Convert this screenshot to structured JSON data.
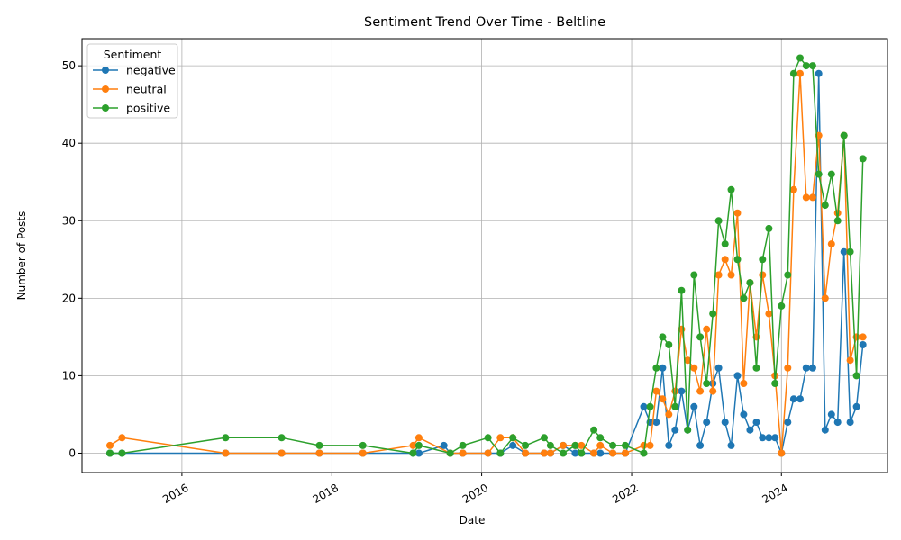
{
  "chart_data": {
    "type": "line",
    "title": "Sentiment Trend Over Time - Beltline",
    "xlabel": "Date",
    "ylabel": "Number of Posts",
    "xlim": [
      "2014-09-01",
      "2025-06-01"
    ],
    "ylim": [
      -2.5,
      53.5
    ],
    "x_ticks": [
      "2016-01-01",
      "2018-01-01",
      "2020-01-01",
      "2022-01-01",
      "2024-01-01"
    ],
    "x_tick_labels": [
      "2016",
      "2018",
      "2020",
      "2022",
      "2024"
    ],
    "y_ticks": [
      0,
      10,
      20,
      30,
      40,
      50
    ],
    "grid": true,
    "legend": {
      "title": "Sentiment",
      "position": "top-left"
    },
    "series": [
      {
        "name": "negative",
        "color": "#1f77b4",
        "points": [
          [
            "2015-01-15",
            0
          ],
          [
            "2015-03-15",
            0
          ],
          [
            "2016-08-01",
            0
          ],
          [
            "2017-05-01",
            0
          ],
          [
            "2017-11-01",
            0
          ],
          [
            "2018-06-01",
            0
          ],
          [
            "2019-02-01",
            0
          ],
          [
            "2019-03-01",
            0
          ],
          [
            "2019-07-01",
            1
          ],
          [
            "2019-08-01",
            0
          ],
          [
            "2019-10-01",
            0
          ],
          [
            "2020-02-01",
            0
          ],
          [
            "2020-04-01",
            0
          ],
          [
            "2020-06-01",
            1
          ],
          [
            "2020-08-01",
            0
          ],
          [
            "2020-11-01",
            0
          ],
          [
            "2020-12-01",
            0
          ],
          [
            "2021-02-01",
            1
          ],
          [
            "2021-04-01",
            0
          ],
          [
            "2021-05-01",
            0
          ],
          [
            "2021-07-01",
            0
          ],
          [
            "2021-08-01",
            0
          ],
          [
            "2021-10-01",
            0
          ],
          [
            "2021-12-01",
            0
          ],
          [
            "2022-03-01",
            6
          ],
          [
            "2022-04-01",
            4
          ],
          [
            "2022-05-01",
            4
          ],
          [
            "2022-06-01",
            11
          ],
          [
            "2022-07-01",
            1
          ],
          [
            "2022-08-01",
            3
          ],
          [
            "2022-09-01",
            8
          ],
          [
            "2022-10-01",
            3
          ],
          [
            "2022-11-01",
            6
          ],
          [
            "2022-12-01",
            1
          ],
          [
            "2023-01-01",
            4
          ],
          [
            "2023-02-01",
            9
          ],
          [
            "2023-03-01",
            11
          ],
          [
            "2023-04-01",
            4
          ],
          [
            "2023-05-01",
            1
          ],
          [
            "2023-06-01",
            10
          ],
          [
            "2023-07-01",
            5
          ],
          [
            "2023-08-01",
            3
          ],
          [
            "2023-09-01",
            4
          ],
          [
            "2023-10-01",
            2
          ],
          [
            "2023-11-01",
            2
          ],
          [
            "2023-12-01",
            2
          ],
          [
            "2024-01-01",
            0
          ],
          [
            "2024-02-01",
            4
          ],
          [
            "2024-03-01",
            7
          ],
          [
            "2024-04-01",
            7
          ],
          [
            "2024-05-01",
            11
          ],
          [
            "2024-06-01",
            11
          ],
          [
            "2024-07-01",
            49
          ],
          [
            "2024-08-01",
            3
          ],
          [
            "2024-09-01",
            5
          ],
          [
            "2024-10-01",
            4
          ],
          [
            "2024-11-01",
            26
          ],
          [
            "2024-12-01",
            4
          ],
          [
            "2025-01-01",
            6
          ],
          [
            "2025-02-01",
            14
          ]
        ]
      },
      {
        "name": "neutral",
        "color": "#ff7f0e",
        "points": [
          [
            "2015-01-15",
            1
          ],
          [
            "2015-03-15",
            2
          ],
          [
            "2016-08-01",
            0
          ],
          [
            "2017-05-01",
            0
          ],
          [
            "2017-11-01",
            0
          ],
          [
            "2018-06-01",
            0
          ],
          [
            "2019-02-01",
            1
          ],
          [
            "2019-03-01",
            2
          ],
          [
            "2019-08-01",
            0
          ],
          [
            "2019-10-01",
            0
          ],
          [
            "2020-02-01",
            0
          ],
          [
            "2020-04-01",
            2
          ],
          [
            "2020-06-01",
            2
          ],
          [
            "2020-08-01",
            0
          ],
          [
            "2020-11-01",
            0
          ],
          [
            "2020-12-01",
            0
          ],
          [
            "2021-02-01",
            1
          ],
          [
            "2021-04-01",
            1
          ],
          [
            "2021-05-01",
            1
          ],
          [
            "2021-07-01",
            0
          ],
          [
            "2021-08-01",
            1
          ],
          [
            "2021-10-01",
            0
          ],
          [
            "2021-12-01",
            0
          ],
          [
            "2022-03-01",
            1
          ],
          [
            "2022-04-01",
            1
          ],
          [
            "2022-05-01",
            8
          ],
          [
            "2022-06-01",
            7
          ],
          [
            "2022-07-01",
            5
          ],
          [
            "2022-08-01",
            8
          ],
          [
            "2022-09-01",
            16
          ],
          [
            "2022-10-01",
            12
          ],
          [
            "2022-11-01",
            11
          ],
          [
            "2022-12-01",
            8
          ],
          [
            "2023-01-01",
            16
          ],
          [
            "2023-02-01",
            8
          ],
          [
            "2023-03-01",
            23
          ],
          [
            "2023-04-01",
            25
          ],
          [
            "2023-05-01",
            23
          ],
          [
            "2023-06-01",
            31
          ],
          [
            "2023-07-01",
            9
          ],
          [
            "2023-08-01",
            22
          ],
          [
            "2023-09-01",
            15
          ],
          [
            "2023-10-01",
            23
          ],
          [
            "2023-11-01",
            18
          ],
          [
            "2023-12-01",
            10
          ],
          [
            "2024-01-01",
            0
          ],
          [
            "2024-02-01",
            11
          ],
          [
            "2024-03-01",
            34
          ],
          [
            "2024-04-01",
            49
          ],
          [
            "2024-05-01",
            33
          ],
          [
            "2024-06-01",
            33
          ],
          [
            "2024-07-01",
            41
          ],
          [
            "2024-08-01",
            20
          ],
          [
            "2024-09-01",
            27
          ],
          [
            "2024-10-01",
            31
          ],
          [
            "2024-11-01",
            41
          ],
          [
            "2024-12-01",
            12
          ],
          [
            "2025-01-01",
            15
          ],
          [
            "2025-02-01",
            15
          ]
        ]
      },
      {
        "name": "positive",
        "color": "#2ca02c",
        "points": [
          [
            "2015-01-15",
            0
          ],
          [
            "2015-03-15",
            0
          ],
          [
            "2016-08-01",
            2
          ],
          [
            "2017-05-01",
            2
          ],
          [
            "2017-11-01",
            1
          ],
          [
            "2018-06-01",
            1
          ],
          [
            "2019-02-01",
            0
          ],
          [
            "2019-03-01",
            1
          ],
          [
            "2019-08-01",
            0
          ],
          [
            "2019-10-01",
            1
          ],
          [
            "2020-02-01",
            2
          ],
          [
            "2020-04-01",
            0
          ],
          [
            "2020-06-01",
            2
          ],
          [
            "2020-08-01",
            1
          ],
          [
            "2020-11-01",
            2
          ],
          [
            "2020-12-01",
            1
          ],
          [
            "2021-02-01",
            0
          ],
          [
            "2021-04-01",
            1
          ],
          [
            "2021-05-01",
            0
          ],
          [
            "2021-07-01",
            3
          ],
          [
            "2021-08-01",
            2
          ],
          [
            "2021-10-01",
            1
          ],
          [
            "2021-12-01",
            1
          ],
          [
            "2022-03-01",
            0
          ],
          [
            "2022-04-01",
            6
          ],
          [
            "2022-05-01",
            11
          ],
          [
            "2022-06-01",
            15
          ],
          [
            "2022-07-01",
            14
          ],
          [
            "2022-08-01",
            6
          ],
          [
            "2022-09-01",
            21
          ],
          [
            "2022-10-01",
            3
          ],
          [
            "2022-11-01",
            23
          ],
          [
            "2022-12-01",
            15
          ],
          [
            "2023-01-01",
            9
          ],
          [
            "2023-02-01",
            18
          ],
          [
            "2023-03-01",
            30
          ],
          [
            "2023-04-01",
            27
          ],
          [
            "2023-05-01",
            34
          ],
          [
            "2023-06-01",
            25
          ],
          [
            "2023-07-01",
            20
          ],
          [
            "2023-08-01",
            22
          ],
          [
            "2023-09-01",
            11
          ],
          [
            "2023-10-01",
            25
          ],
          [
            "2023-11-01",
            29
          ],
          [
            "2023-12-01",
            9
          ],
          [
            "2024-01-01",
            19
          ],
          [
            "2024-02-01",
            23
          ],
          [
            "2024-03-01",
            49
          ],
          [
            "2024-04-01",
            51
          ],
          [
            "2024-05-01",
            50
          ],
          [
            "2024-06-01",
            50
          ],
          [
            "2024-07-01",
            36
          ],
          [
            "2024-08-01",
            32
          ],
          [
            "2024-09-01",
            36
          ],
          [
            "2024-10-01",
            30
          ],
          [
            "2024-11-01",
            41
          ],
          [
            "2024-12-01",
            26
          ],
          [
            "2025-01-01",
            10
          ],
          [
            "2025-02-01",
            38
          ]
        ]
      }
    ]
  }
}
